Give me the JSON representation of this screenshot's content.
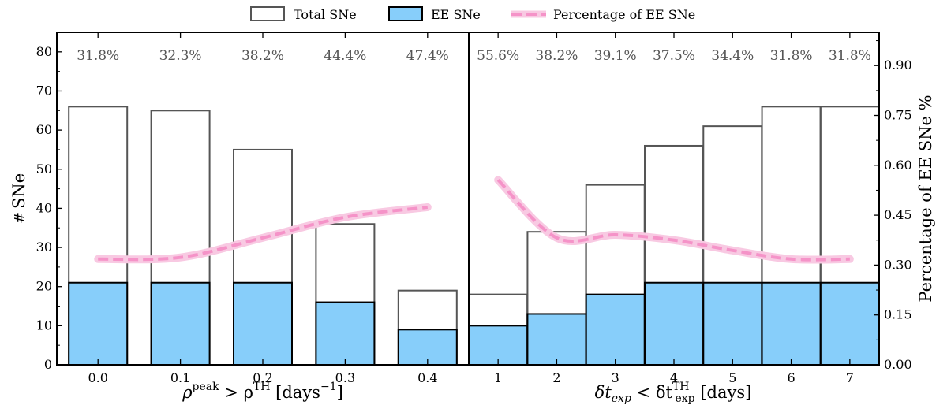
{
  "legend": {
    "total_label": "Total SNe",
    "ee_label": "EE SNe",
    "pct_label": "Percentage of EE SNe"
  },
  "colors": {
    "total_edge": "#555555",
    "ee_fill": "#87CEFA",
    "ee_edge": "#000000",
    "pct_line": "#F593C8",
    "pct_glow": "#F8C9E2",
    "pct_text": "#555555"
  },
  "chart_data": {
    "type": "bar",
    "left_axis": {
      "label_prefix": "# SNe",
      "ylim": [
        0,
        85
      ],
      "ticks": [
        "0",
        "10",
        "20",
        "30",
        "40",
        "50",
        "60",
        "70",
        "80"
      ]
    },
    "right_axis": {
      "label": "Percentage of EE SNe %",
      "ylim": [
        0,
        1.0
      ],
      "ticks": [
        "0.00",
        "0.15",
        "0.30",
        "0.45",
        "0.60",
        "0.75",
        "0.90"
      ]
    },
    "panels": [
      {
        "xlabel_main": "ρ",
        "xlabel_sup1": "peak",
        "xlabel_op": " > ρ",
        "xlabel_sup2": "TH",
        "xlabel_unit": " [days",
        "xlabel_unit_sup": "−1",
        "xlabel_unit_end": "]",
        "categories": [
          "0.0",
          "0.1",
          "0.2",
          "0.3",
          "0.4"
        ],
        "total": [
          66,
          65,
          55,
          36,
          19
        ],
        "ee": [
          21,
          21,
          21,
          16,
          9
        ],
        "percentage": [
          0.318,
          0.323,
          0.382,
          0.444,
          0.474
        ],
        "percent_labels": [
          "31.8%",
          "32.3%",
          "38.2%",
          "44.4%",
          "47.4%"
        ]
      },
      {
        "xlabel_main": "δt",
        "xlabel_sub1": "exp",
        "xlabel_op": " < δt",
        "xlabel_sup2": "TH",
        "xlabel_sub2": "exp",
        "xlabel_unit": " [days]",
        "categories": [
          "1",
          "2",
          "3",
          "4",
          "5",
          "6",
          "7"
        ],
        "total": [
          18,
          34,
          46,
          56,
          61,
          66,
          66
        ],
        "ee": [
          10,
          13,
          18,
          21,
          21,
          21,
          21
        ],
        "percentage": [
          0.556,
          0.382,
          0.391,
          0.375,
          0.344,
          0.318,
          0.318
        ],
        "percent_labels": [
          "55.6%",
          "38.2%",
          "39.1%",
          "37.5%",
          "34.4%",
          "31.8%",
          "31.8%"
        ]
      }
    ]
  }
}
